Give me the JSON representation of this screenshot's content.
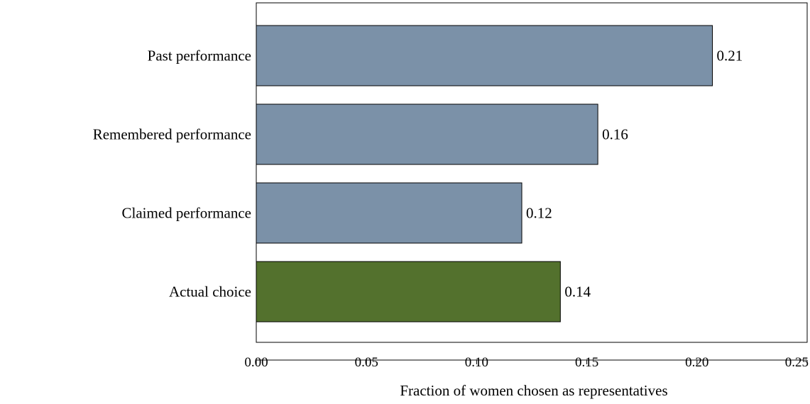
{
  "chart_data": {
    "type": "bar",
    "orientation": "horizontal",
    "categories": [
      "Past performance",
      "Remembered performance",
      "Claimed performance",
      "Actual choice"
    ],
    "values": [
      0.207,
      0.155,
      0.1205,
      0.138
    ],
    "value_labels": [
      "0.21",
      "0.16",
      "0.12",
      "0.14"
    ],
    "bar_colors": [
      "#7b91a8",
      "#7b91a8",
      "#7b91a8",
      "#53712d"
    ],
    "title": "",
    "xlabel": "Fraction of women chosen as representatives",
    "ylabel": "",
    "xlim": [
      0,
      0.25
    ],
    "xticks": [
      0,
      0.05,
      0.1,
      0.15,
      0.2,
      0.25
    ],
    "xtick_labels": [
      "0.00",
      "0.05",
      "0.10",
      "0.15",
      "0.20",
      "0.25"
    ],
    "grid": false,
    "legend": "none"
  }
}
